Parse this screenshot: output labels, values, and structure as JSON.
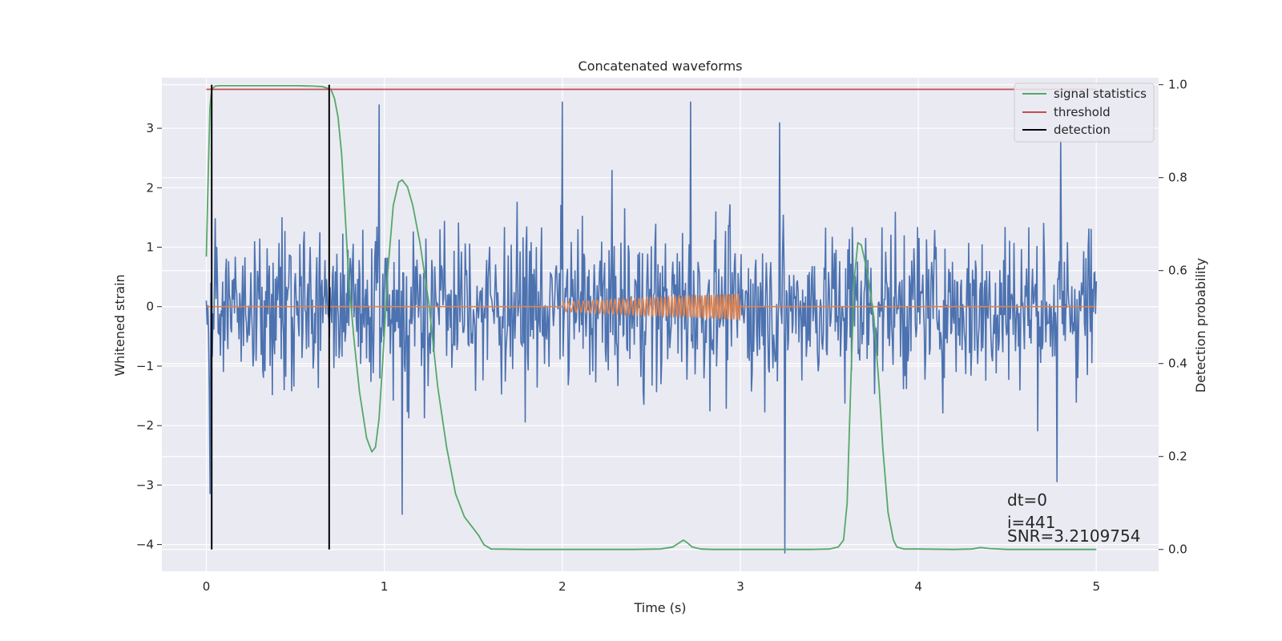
{
  "chart_data": {
    "type": "line",
    "title": "Concatenated waveforms",
    "xlabel": "Time (s)",
    "ylabel": "Whitened strain",
    "ylabel_right": "Detection probability",
    "xlim": [
      -0.25,
      5.35
    ],
    "ylim": [
      -4.45,
      3.85
    ],
    "ylim_right": [
      -0.047,
      1.015
    ],
    "x_ticks": [
      0,
      1,
      2,
      3,
      4,
      5
    ],
    "x_tick_labels": [
      "0",
      "1",
      "2",
      "3",
      "4",
      "5"
    ],
    "y_ticks": [
      -4,
      -3,
      -2,
      -1,
      0,
      1,
      2,
      3
    ],
    "y_tick_labels": [
      "−4",
      "−3",
      "−2",
      "−1",
      "0",
      "1",
      "2",
      "3"
    ],
    "y_right_ticks": [
      0.0,
      0.2,
      0.4,
      0.6,
      0.8,
      1.0
    ],
    "y_right_tick_labels": [
      "0.0",
      "0.2",
      "0.4",
      "0.6",
      "0.8",
      "1.0"
    ],
    "grid": true,
    "legend_position": "upper-right",
    "colors": {
      "plot_bg": "#eaeaf2",
      "grid": "#ffffff",
      "noise": "#4c72b0",
      "injected": "#dd8452",
      "statistic": "#55a868",
      "threshold": "#c44e52",
      "detection": "#000000"
    },
    "series": [
      {
        "name": "",
        "axis": "left",
        "kind": "noise",
        "x_range": [
          0,
          5
        ],
        "samples": 1200,
        "typical_range": [
          -2.5,
          2.6
        ],
        "extremes": [
          [
            0.02,
            -3.15
          ],
          [
            0.97,
            3.4
          ],
          [
            1.1,
            -3.5
          ],
          [
            2.0,
            3.45
          ],
          [
            2.72,
            3.45
          ],
          [
            3.25,
            -4.15
          ],
          [
            3.22,
            3.1
          ],
          [
            4.78,
            -2.95
          ],
          [
            4.8,
            2.8
          ]
        ]
      },
      {
        "name": "",
        "axis": "left",
        "kind": "injected_chirp",
        "x_range": [
          0,
          5
        ],
        "chirp_start": 2.0,
        "chirp_end": 3.0,
        "amplitude_start": 0.08,
        "amplitude_end": 0.22
      },
      {
        "name": "signal statistics",
        "axis": "right",
        "x": [
          0.0,
          0.01,
          0.02,
          0.03,
          0.05,
          0.08,
          0.12,
          0.2,
          0.3,
          0.4,
          0.5,
          0.6,
          0.65,
          0.7,
          0.72,
          0.74,
          0.76,
          0.78,
          0.8,
          0.83,
          0.86,
          0.9,
          0.93,
          0.95,
          0.97,
          0.99,
          1.02,
          1.05,
          1.08,
          1.1,
          1.13,
          1.16,
          1.2,
          1.25,
          1.3,
          1.35,
          1.4,
          1.45,
          1.5,
          1.53,
          1.56,
          1.6,
          1.8,
          2.0,
          2.2,
          2.4,
          2.55,
          2.62,
          2.66,
          2.68,
          2.7,
          2.73,
          2.78,
          2.85,
          3.0,
          3.2,
          3.4,
          3.5,
          3.55,
          3.58,
          3.6,
          3.62,
          3.64,
          3.66,
          3.68,
          3.7,
          3.72,
          3.75,
          3.78,
          3.8,
          3.83,
          3.86,
          3.88,
          3.92,
          4.0,
          4.2,
          4.3,
          4.35,
          4.4,
          4.5,
          4.7,
          5.0
        ],
        "y": [
          0.63,
          0.8,
          0.95,
          0.99,
          0.997,
          0.998,
          0.998,
          0.998,
          0.998,
          0.998,
          0.998,
          0.997,
          0.996,
          0.99,
          0.97,
          0.93,
          0.85,
          0.72,
          0.58,
          0.45,
          0.34,
          0.24,
          0.21,
          0.22,
          0.28,
          0.4,
          0.6,
          0.74,
          0.79,
          0.795,
          0.78,
          0.74,
          0.66,
          0.53,
          0.35,
          0.22,
          0.12,
          0.07,
          0.045,
          0.03,
          0.01,
          0.001,
          0.0,
          0.0,
          0.0,
          0.0,
          0.001,
          0.005,
          0.015,
          0.02,
          0.015,
          0.005,
          0.001,
          0.0,
          0.0,
          0.0,
          0.0,
          0.001,
          0.005,
          0.02,
          0.1,
          0.35,
          0.58,
          0.66,
          0.655,
          0.62,
          0.58,
          0.5,
          0.35,
          0.22,
          0.08,
          0.02,
          0.005,
          0.001,
          0.001,
          0.0,
          0.001,
          0.004,
          0.002,
          0.0,
          0.0,
          0.0
        ]
      },
      {
        "name": "threshold",
        "axis": "right",
        "x": [
          0.0,
          5.0
        ],
        "y": [
          0.99,
          0.99
        ]
      },
      {
        "name": "detection",
        "axis": "right",
        "vertical_lines": [
          0.03,
          0.69
        ],
        "y_from": 0.0,
        "y_to": 1.0
      }
    ],
    "annotations": [
      "dt=0",
      "i=441",
      "SNR=3.2109754"
    ]
  }
}
